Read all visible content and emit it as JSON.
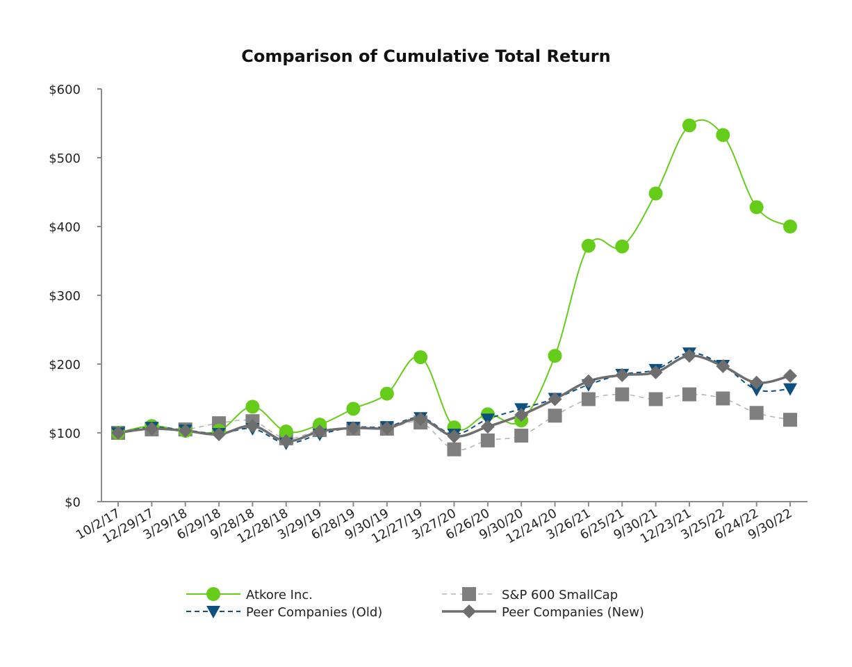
{
  "chart_data": {
    "type": "line",
    "title": "Comparison of Cumulative Total Return",
    "xlabel": "",
    "ylabel": "",
    "ylim": [
      0,
      600
    ],
    "yticks": [
      0,
      100,
      200,
      300,
      400,
      500,
      600
    ],
    "ytick_labels": [
      "$0",
      "$100",
      "$200",
      "$300",
      "$400",
      "$500",
      "$600"
    ],
    "categories": [
      "10/2/17",
      "12/29/17",
      "3/29/18",
      "6/29/18",
      "9/28/18",
      "12/28/18",
      "3/29/19",
      "6/28/19",
      "9/30/19",
      "12/27/19",
      "3/27/20",
      "6/26/20",
      "9/30/20",
      "12/24/20",
      "3/26/21",
      "6/25/21",
      "9/30/21",
      "12/23/21",
      "3/25/22",
      "6/24/22",
      "9/30/22"
    ],
    "grid": false,
    "legend_position": "bottom",
    "series": [
      {
        "name": "Atkore Inc.",
        "color": "#66cc1a",
        "line_style": "solid",
        "marker": "circle",
        "smooth": true,
        "values": [
          100,
          110,
          103,
          103,
          138,
          102,
          112,
          135,
          157,
          210,
          108,
          127,
          118,
          212,
          372,
          371,
          448,
          547,
          533,
          428,
          400
        ]
      },
      {
        "name": "S&P 600 SmallCap",
        "color": "#7f7f7f",
        "line_style": "dashed-light",
        "marker": "square",
        "smooth": true,
        "values": [
          100,
          105,
          105,
          114,
          117,
          92,
          104,
          106,
          106,
          115,
          76,
          89,
          96,
          125,
          149,
          156,
          149,
          156,
          150,
          129,
          119
        ]
      },
      {
        "name": "Peer Companies (Old)",
        "color": "#0d4f7e",
        "line_style": "dashed",
        "marker": "triangle-down",
        "smooth": true,
        "values": [
          100,
          108,
          104,
          99,
          106,
          85,
          98,
          108,
          109,
          122,
          98,
          120,
          135,
          150,
          170,
          185,
          192,
          216,
          198,
          163,
          164
        ]
      },
      {
        "name": "Peer Companies (New)",
        "color": "#6e6e6e",
        "line_style": "solid-thick",
        "marker": "diamond",
        "smooth": true,
        "values": [
          100,
          106,
          103,
          98,
          110,
          88,
          102,
          107,
          107,
          120,
          95,
          109,
          126,
          149,
          175,
          184,
          188,
          212,
          197,
          173,
          183
        ]
      }
    ]
  }
}
